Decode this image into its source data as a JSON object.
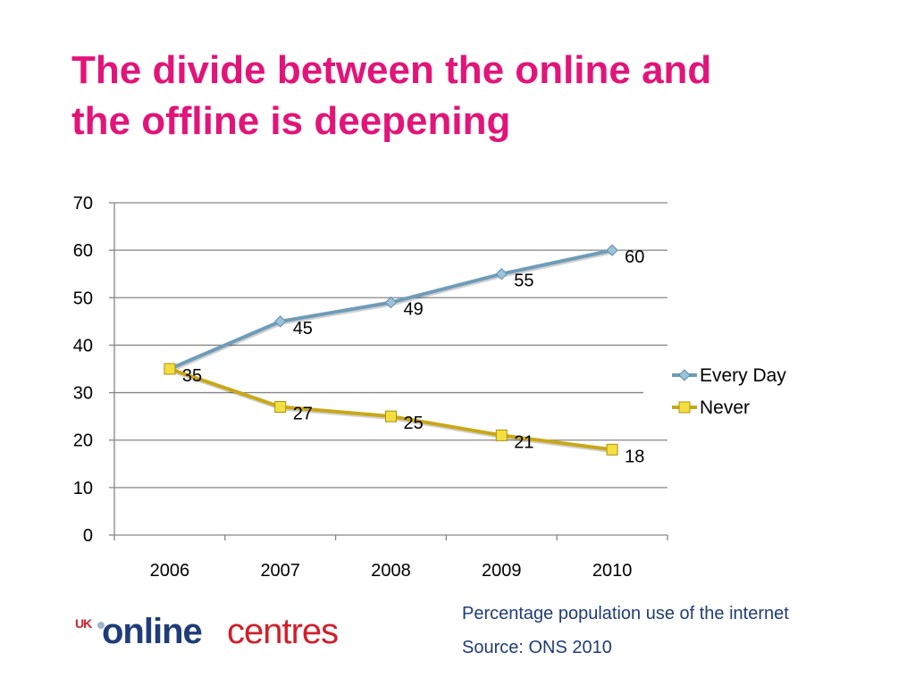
{
  "slide": {
    "title_line1": "The divide between the online and",
    "title_line2": "the offline is deepening",
    "caption_line1": "Percentage population use of the internet",
    "caption_line2": "Source: ONS 2010"
  },
  "logo": {
    "uk": "UK",
    "online": "online",
    "centres": "centres"
  },
  "colors": {
    "title": "#E2147A",
    "every_day_line": "#6E9CB8",
    "every_day_marker": "#9CC3DA",
    "never_line": "#C8A818",
    "never_marker": "#F3DF3F",
    "gridline": "#868686",
    "caption": "#1F3C7A"
  },
  "chart_data": {
    "type": "line",
    "title": "",
    "xlabel": "",
    "ylabel": "",
    "categories": [
      "2006",
      "2007",
      "2008",
      "2009",
      "2010"
    ],
    "ylim": [
      0,
      70
    ],
    "yticks": [
      0,
      10,
      20,
      30,
      40,
      50,
      60,
      70
    ],
    "grid": true,
    "legend_position": "right",
    "series": [
      {
        "name": "Every Day",
        "marker": "diamond",
        "values": [
          35,
          45,
          49,
          55,
          60
        ],
        "labels": [
          "",
          "45",
          "49",
          "55",
          "60"
        ]
      },
      {
        "name": "Never",
        "marker": "square",
        "values": [
          35,
          27,
          25,
          21,
          18
        ],
        "labels": [
          "35",
          "27",
          "25",
          "21",
          "18"
        ]
      }
    ]
  }
}
